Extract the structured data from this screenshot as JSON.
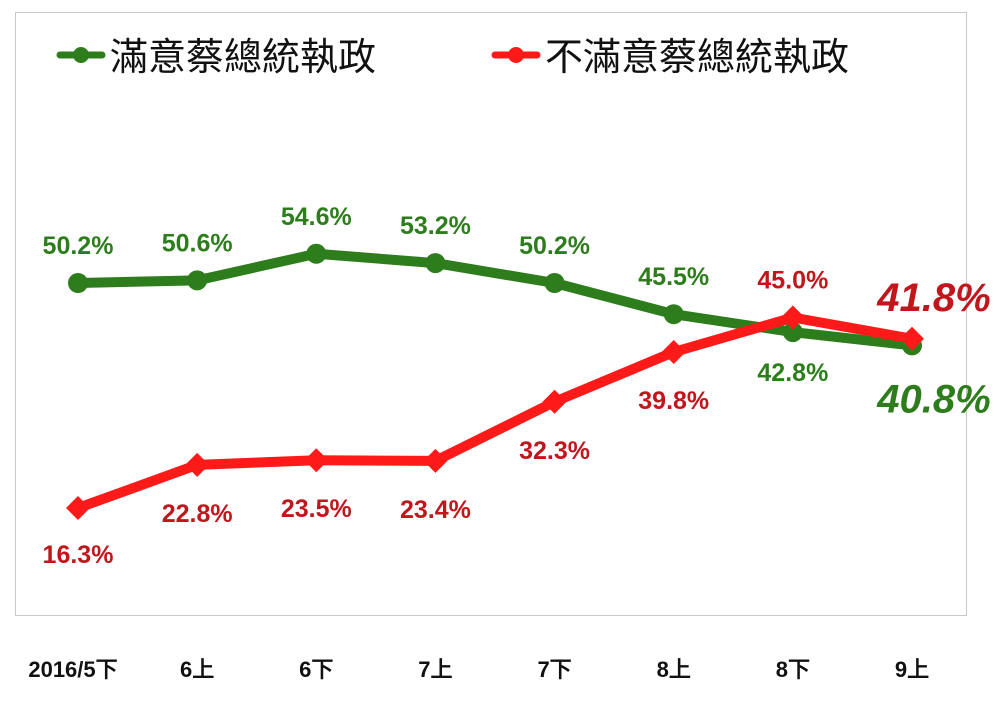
{
  "chart_data": {
    "type": "line",
    "categories": [
      "2016/5下",
      "6上",
      "6下",
      "7上",
      "7下",
      "8上",
      "8下",
      "9上"
    ],
    "series": [
      {
        "name": "滿意蔡總統執政",
        "color": "#2e7d1c",
        "label_color": "#2e7d1c",
        "values": [
          50.2,
          50.6,
          54.6,
          53.2,
          50.2,
          45.5,
          42.8,
          40.8
        ],
        "labels": [
          "50.2%",
          "50.6%",
          "54.6%",
          "53.2%",
          "50.2%",
          "45.5%",
          "42.8%",
          "40.8%"
        ]
      },
      {
        "name": "不滿意蔡總統執政",
        "color": "#ff1a1a",
        "label_color": "#c0161c",
        "values": [
          16.3,
          22.8,
          23.5,
          23.4,
          32.3,
          39.8,
          45.0,
          41.8
        ],
        "labels": [
          "16.3%",
          "22.8%",
          "23.5%",
          "23.4%",
          "32.3%",
          "39.8%",
          "45.0%",
          "41.8%"
        ]
      }
    ],
    "grid": false,
    "legend_position": "top",
    "highlight_last_point": true
  }
}
